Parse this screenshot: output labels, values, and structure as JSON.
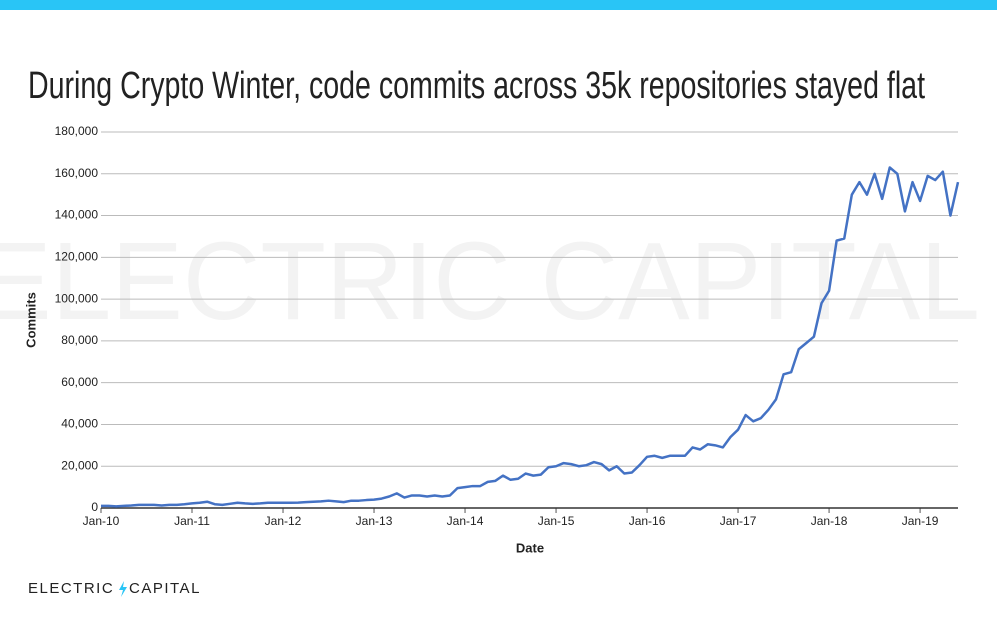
{
  "chart_data": {
    "type": "line",
    "title": "During Crypto Winter, code commits across 35k repositories stayed flat",
    "xlabel": "Date",
    "ylabel": "Commits",
    "watermark": "ELECTRIC CAPITAL",
    "brand": [
      "ELECTRIC",
      "CAPITAL"
    ],
    "color": "#4472c4",
    "x": [
      "2010-01",
      "2010-02",
      "2010-03",
      "2010-04",
      "2010-05",
      "2010-06",
      "2010-07",
      "2010-08",
      "2010-09",
      "2010-10",
      "2010-11",
      "2010-12",
      "2011-01",
      "2011-02",
      "2011-03",
      "2011-04",
      "2011-05",
      "2011-06",
      "2011-07",
      "2011-08",
      "2011-09",
      "2011-10",
      "2011-11",
      "2011-12",
      "2012-01",
      "2012-02",
      "2012-03",
      "2012-04",
      "2012-05",
      "2012-06",
      "2012-07",
      "2012-08",
      "2012-09",
      "2012-10",
      "2012-11",
      "2012-12",
      "2013-01",
      "2013-02",
      "2013-03",
      "2013-04",
      "2013-05",
      "2013-06",
      "2013-07",
      "2013-08",
      "2013-09",
      "2013-10",
      "2013-11",
      "2013-12",
      "2014-01",
      "2014-02",
      "2014-03",
      "2014-04",
      "2014-05",
      "2014-06",
      "2014-07",
      "2014-08",
      "2014-09",
      "2014-10",
      "2014-11",
      "2014-12",
      "2015-01",
      "2015-02",
      "2015-03",
      "2015-04",
      "2015-05",
      "2015-06",
      "2015-07",
      "2015-08",
      "2015-09",
      "2015-10",
      "2015-11",
      "2015-12",
      "2016-01",
      "2016-02",
      "2016-03",
      "2016-04",
      "2016-05",
      "2016-06",
      "2016-07",
      "2016-08",
      "2016-09",
      "2016-10",
      "2016-11",
      "2016-12",
      "2017-01",
      "2017-02",
      "2017-03",
      "2017-04",
      "2017-05",
      "2017-06",
      "2017-07",
      "2017-08",
      "2017-09",
      "2017-10",
      "2017-11",
      "2017-12",
      "2018-01",
      "2018-02",
      "2018-03",
      "2018-04",
      "2018-05",
      "2018-06",
      "2018-07",
      "2018-08",
      "2018-09",
      "2018-10",
      "2018-11",
      "2018-12",
      "2019-01",
      "2019-02",
      "2019-03",
      "2019-04",
      "2019-05",
      "2019-06"
    ],
    "values": [
      1000,
      1000,
      800,
      1000,
      1200,
      1500,
      1500,
      1500,
      1200,
      1500,
      1500,
      1800,
      2200,
      2500,
      3000,
      1800,
      1500,
      2000,
      2500,
      2200,
      2000,
      2200,
      2500,
      2500,
      2500,
      2500,
      2600,
      2800,
      3000,
      3200,
      3500,
      3200,
      2800,
      3500,
      3500,
      3800,
      4000,
      4500,
      5500,
      7000,
      5000,
      6000,
      6000,
      5500,
      6000,
      5500,
      6000,
      9500,
      10000,
      10500,
      10500,
      12500,
      13000,
      15500,
      13500,
      14000,
      16500,
      15500,
      16000,
      19500,
      20000,
      21500,
      21000,
      20000,
      20500,
      22000,
      21000,
      18000,
      20000,
      16500,
      17000,
      20500,
      24500,
      25000,
      24000,
      25000,
      25000,
      25000,
      29000,
      28000,
      30500,
      30000,
      29000,
      34000,
      37500,
      44500,
      41500,
      43000,
      47000,
      52000,
      64000,
      65000,
      76000,
      79000,
      82000,
      98000,
      104000,
      128000,
      129000,
      150000,
      156000,
      150000,
      160000,
      148000,
      163000,
      160000,
      142000,
      156000,
      147000,
      159000,
      157000,
      161000,
      140000,
      156000
    ],
    "xlim": [
      "2010-01",
      "2019-06"
    ],
    "xticks": [
      {
        "value": "2010-01",
        "label": "Jan-10"
      },
      {
        "value": "2011-01",
        "label": "Jan-11"
      },
      {
        "value": "2012-01",
        "label": "Jan-12"
      },
      {
        "value": "2013-01",
        "label": "Jan-13"
      },
      {
        "value": "2014-01",
        "label": "Jan-14"
      },
      {
        "value": "2015-01",
        "label": "Jan-15"
      },
      {
        "value": "2016-01",
        "label": "Jan-16"
      },
      {
        "value": "2017-01",
        "label": "Jan-17"
      },
      {
        "value": "2018-01",
        "label": "Jan-18"
      },
      {
        "value": "2019-01",
        "label": "Jan-19"
      }
    ],
    "ylim": [
      0,
      180000
    ],
    "yticks": [
      0,
      {
        "value": 20000,
        "label": "20,000"
      },
      {
        "value": 40000,
        "label": "40,000"
      },
      {
        "value": 60000,
        "label": "60,000"
      },
      {
        "value": 80000,
        "label": "80,000"
      },
      {
        "value": 100000,
        "label": "100,000"
      },
      {
        "value": 120000,
        "label": "120,000"
      },
      {
        "value": 140000,
        "label": "140,000"
      },
      {
        "value": 160000,
        "label": "160,000"
      },
      {
        "value": 180000,
        "label": "180,000"
      }
    ],
    "grid": true
  }
}
